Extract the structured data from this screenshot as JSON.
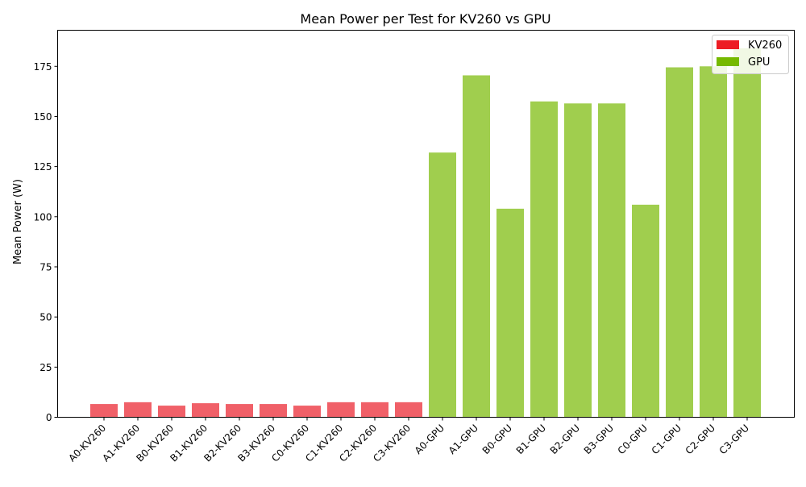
{
  "chart_data": {
    "type": "bar",
    "title": "Mean Power per Test for KV260 vs GPU",
    "xlabel": "",
    "ylabel": "Mean Power (W)",
    "ylim": [
      0,
      193
    ],
    "yticks": [
      0,
      25,
      50,
      75,
      100,
      125,
      150,
      175
    ],
    "grid": false,
    "legend_position": "top-right",
    "categories": [
      "A0-KV260",
      "A1-KV260",
      "B0-KV260",
      "B1-KV260",
      "B2-KV260",
      "B3-KV260",
      "C0-KV260",
      "C1-KV260",
      "C2-KV260",
      "C3-KV260",
      "A0-GPU",
      "A1-GPU",
      "B0-GPU",
      "B1-GPU",
      "B2-GPU",
      "B3-GPU",
      "C0-GPU",
      "C1-GPU",
      "C2-GPU",
      "C3-GPU"
    ],
    "values": [
      6.6,
      7.5,
      5.8,
      7.0,
      6.6,
      6.6,
      5.8,
      7.5,
      7.5,
      7.5,
      132,
      170.5,
      104,
      157.5,
      156.5,
      156.5,
      106,
      174.5,
      175,
      184
    ],
    "groups": [
      "KV260",
      "KV260",
      "KV260",
      "KV260",
      "KV260",
      "KV260",
      "KV260",
      "KV260",
      "KV260",
      "KV260",
      "GPU",
      "GPU",
      "GPU",
      "GPU",
      "GPU",
      "GPU",
      "GPU",
      "GPU",
      "GPU",
      "GPU"
    ],
    "legend": [
      {
        "name": "KV260",
        "color": "#ed1c24"
      },
      {
        "name": "GPU",
        "color": "#76b900"
      }
    ],
    "bar_colors": {
      "KV260": "#f06068",
      "GPU": "#a0ce4e"
    }
  }
}
